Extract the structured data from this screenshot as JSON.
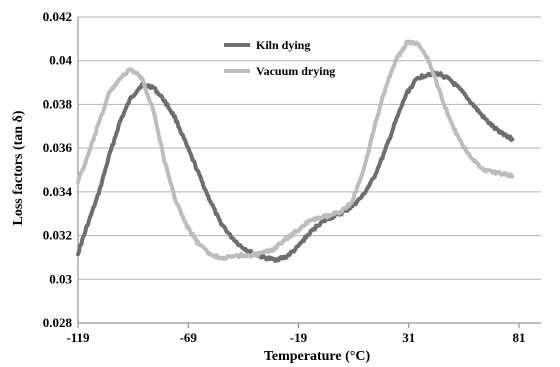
{
  "chart_data": {
    "type": "line",
    "title": "",
    "xlabel": "Temperature (°C)",
    "ylabel": "Loss factors (tan δ)",
    "xlim": [
      -119,
      91
    ],
    "ylim": [
      0.028,
      0.042
    ],
    "x_ticks": [
      -119,
      -69,
      -19,
      31,
      81
    ],
    "x_tick_labels": [
      "-119",
      "-69",
      "-19",
      "31",
      "81"
    ],
    "y_ticks": [
      0.028,
      0.03,
      0.032,
      0.034,
      0.036,
      0.038,
      0.04,
      0.042
    ],
    "y_tick_labels": [
      "0.028",
      "0.03",
      "0.032",
      "0.034",
      "0.036",
      "0.038",
      "0.04",
      "0.042"
    ],
    "grid": "horizontal",
    "legend_position": "top-center",
    "series": [
      {
        "name": "Kiln dying",
        "color": "#6e6e6e",
        "x": [
          -119,
          -115,
          -110,
          -105,
          -100,
          -95,
          -90,
          -85,
          -80,
          -75,
          -70,
          -65,
          -60,
          -55,
          -50,
          -45,
          -40,
          -35,
          -30,
          -25,
          -20,
          -15,
          -10,
          -5,
          0,
          5,
          10,
          15,
          20,
          25,
          30,
          35,
          40,
          45,
          50,
          55,
          60,
          65,
          70,
          75,
          78
        ],
        "y": [
          0.0312,
          0.0324,
          0.0338,
          0.0356,
          0.0372,
          0.0383,
          0.0389,
          0.0388,
          0.0382,
          0.0374,
          0.0362,
          0.035,
          0.0338,
          0.0327,
          0.032,
          0.0315,
          0.0312,
          0.031,
          0.0309,
          0.031,
          0.0314,
          0.032,
          0.0325,
          0.0328,
          0.033,
          0.0333,
          0.0338,
          0.0346,
          0.0358,
          0.0372,
          0.0385,
          0.0392,
          0.0394,
          0.0394,
          0.0391,
          0.0386,
          0.038,
          0.0374,
          0.0369,
          0.0366,
          0.0364
        ]
      },
      {
        "name": "Vacuum drying",
        "color": "#bdbdbd",
        "x": [
          -119,
          -115,
          -110,
          -105,
          -100,
          -95,
          -90,
          -85,
          -80,
          -75,
          -70,
          -65,
          -60,
          -55,
          -50,
          -45,
          -40,
          -35,
          -30,
          -25,
          -20,
          -15,
          -10,
          -5,
          0,
          5,
          10,
          15,
          20,
          25,
          30,
          35,
          40,
          45,
          50,
          55,
          60,
          65,
          70,
          75,
          78
        ],
        "y": [
          0.0345,
          0.0355,
          0.037,
          0.0385,
          0.0392,
          0.0396,
          0.0392,
          0.0378,
          0.0355,
          0.0337,
          0.0325,
          0.0317,
          0.0312,
          0.031,
          0.031,
          0.0311,
          0.0311,
          0.0312,
          0.0314,
          0.0318,
          0.0322,
          0.0326,
          0.0328,
          0.0329,
          0.0331,
          0.0335,
          0.0348,
          0.0368,
          0.0386,
          0.04,
          0.0408,
          0.0408,
          0.04,
          0.0386,
          0.0372,
          0.0362,
          0.0355,
          0.035,
          0.0349,
          0.0348,
          0.0347
        ]
      }
    ]
  }
}
